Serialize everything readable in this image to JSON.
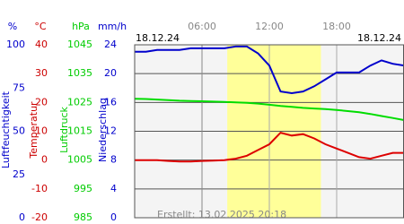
{
  "chart_data": {
    "type": "line",
    "date_left": "18.12.24",
    "date_right": "18.12.24",
    "footer": "Erstellt: 13.02.2025 20:18",
    "x": [
      0,
      1,
      2,
      3,
      4,
      5,
      6,
      7,
      8,
      9,
      10,
      11,
      12,
      13,
      14,
      15,
      16,
      17,
      18,
      19,
      20,
      21,
      22,
      23,
      24
    ],
    "xlim": [
      0,
      24
    ],
    "xticks": [
      {
        "value": 6,
        "label": "06:00"
      },
      {
        "value": 12,
        "label": "12:00"
      },
      {
        "value": 18,
        "label": "18:00"
      }
    ],
    "daylight": [
      8.25,
      16.6
    ],
    "grid": true,
    "axes": [
      {
        "unit": "%",
        "name": "Luftfeuchtigkeit",
        "color": "#0000cc",
        "ylim": [
          0,
          100
        ],
        "yticks": [
          0,
          25,
          50,
          75,
          100
        ]
      },
      {
        "unit": "°C",
        "name": "Temperatur",
        "color": "#cc0000",
        "ylim": [
          -20,
          40
        ],
        "yticks": [
          -20,
          -10,
          0,
          10,
          20,
          30,
          40
        ]
      },
      {
        "unit": "hPa",
        "name": "Luftdruck",
        "color": "#00cc00",
        "ylim": [
          985,
          1045
        ],
        "yticks": [
          985,
          995,
          1005,
          1015,
          1025,
          1035,
          1045
        ]
      },
      {
        "unit": "mm/h",
        "name": "Niederschlag",
        "color": "#0000cc",
        "ylim": [
          0,
          24
        ],
        "yticks": [
          0,
          4,
          8,
          12,
          16,
          20,
          24
        ]
      }
    ],
    "series": [
      {
        "axis": 2,
        "color": "#00dd00",
        "values": [
          1026.3,
          1026.2,
          1026.0,
          1025.8,
          1025.6,
          1025.5,
          1025.4,
          1025.3,
          1025.2,
          1025.0,
          1024.9,
          1024.6,
          1024.2,
          1023.8,
          1023.5,
          1023.1,
          1022.9,
          1022.7,
          1022.4,
          1022.0,
          1021.6,
          1021.0,
          1020.3,
          1019.6,
          1018.9
        ]
      },
      {
        "axis": 1,
        "color": "#dd0000",
        "values": [
          0,
          0,
          0,
          -0.3,
          -0.5,
          -0.5,
          -0.3,
          -0.2,
          0,
          0.5,
          1.5,
          3.5,
          5.5,
          9.5,
          8.5,
          9,
          7.5,
          5.5,
          4,
          2.5,
          1,
          0.5,
          1.5,
          2.5,
          2.5
        ]
      },
      {
        "axis": 0,
        "color": "#0000cc",
        "values": [
          96,
          96,
          97,
          97,
          97,
          98,
          98,
          98,
          98,
          99,
          99,
          95,
          88,
          73,
          72,
          73,
          76,
          80,
          84,
          84,
          84,
          88,
          91,
          89,
          88
        ]
      }
    ]
  }
}
